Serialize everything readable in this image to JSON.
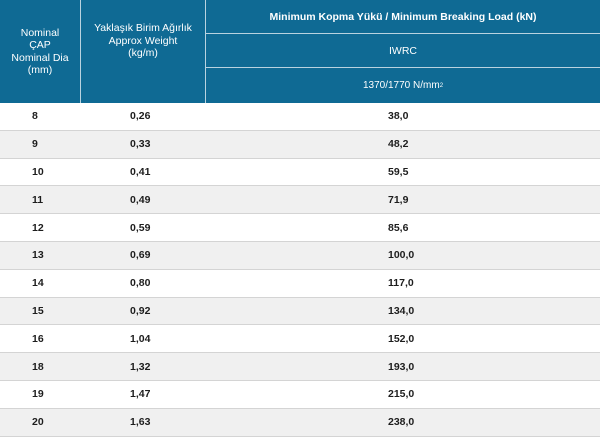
{
  "header": {
    "nominal_lines": [
      "Nominal",
      "ÇAP",
      "Nominal Dia",
      "(mm)"
    ],
    "weight_lines": [
      "Yaklaşık Birim Ağırlık",
      "Approx Weight",
      "(kg/m)"
    ],
    "mbl_label": "Minimum Kopma Yükü / Minimum Breaking Load (kN)",
    "core_label": "IWRC",
    "grade_label": "1370/1770 N/mm",
    "grade_sup": "2"
  },
  "rows": [
    {
      "dia": "8",
      "weight": "0,26",
      "load": "38,0"
    },
    {
      "dia": "9",
      "weight": "0,33",
      "load": "48,2"
    },
    {
      "dia": "10",
      "weight": "0,41",
      "load": "59,5"
    },
    {
      "dia": "11",
      "weight": "0,49",
      "load": "71,9"
    },
    {
      "dia": "12",
      "weight": "0,59",
      "load": "85,6"
    },
    {
      "dia": "13",
      "weight": "0,69",
      "load": "100,0"
    },
    {
      "dia": "14",
      "weight": "0,80",
      "load": "117,0"
    },
    {
      "dia": "15",
      "weight": "0,92",
      "load": "134,0"
    },
    {
      "dia": "16",
      "weight": "1,04",
      "load": "152,0"
    },
    {
      "dia": "18",
      "weight": "1,32",
      "load": "193,0"
    },
    {
      "dia": "19",
      "weight": "1,47",
      "load": "215,0"
    },
    {
      "dia": "20",
      "weight": "1,63",
      "load": "238,0"
    }
  ]
}
